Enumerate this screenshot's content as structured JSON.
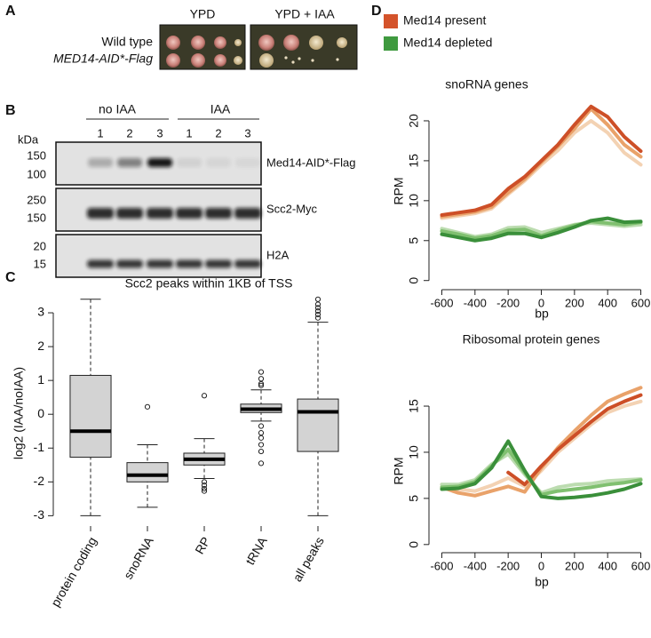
{
  "panel_a": {
    "letter": "A",
    "conditions": [
      "YPD",
      "YPD + IAA"
    ],
    "strains": [
      "Wild type",
      "MED14-AID*-Flag"
    ]
  },
  "panel_b": {
    "letter": "B",
    "groups": [
      "no IAA",
      "IAA"
    ],
    "lanes": [
      "1",
      "2",
      "3",
      "1",
      "2",
      "3"
    ],
    "unit": "kDa",
    "blots": [
      {
        "label": "Med14-AID*-Flag",
        "markers": [
          "150",
          "100"
        ]
      },
      {
        "label": "Scc2-Myc",
        "markers": [
          "250",
          "150"
        ]
      },
      {
        "label": "H2A",
        "markers": [
          "20",
          "15"
        ]
      }
    ]
  },
  "panel_c": {
    "letter": "C"
  },
  "panel_d": {
    "letter": "D",
    "legend": [
      {
        "name": "Med14 present",
        "color": "#d4532b"
      },
      {
        "name": "Med14 depleted",
        "color": "#3f9a3f"
      }
    ]
  },
  "chart_data": [
    {
      "type": "box",
      "title": "Scc2 peaks within 1KB of TSS",
      "ylabel": "log2 (IAA/noIAA)",
      "categories": [
        "protein coding",
        "snoRNA",
        "RP",
        "tRNA",
        "all peaks"
      ],
      "whisker_low": [
        -3,
        -2.75,
        -1.9,
        -0.2,
        -3
      ],
      "q1": [
        -1.27,
        -2.0,
        -1.5,
        0.05,
        -1.1
      ],
      "median": [
        -0.5,
        -1.8,
        -1.33,
        0.15,
        0.07
      ],
      "q3": [
        1.15,
        -1.43,
        -1.15,
        0.3,
        0.45
      ],
      "whisker_high": [
        3.4,
        -0.9,
        -0.72,
        0.72,
        2.72
      ],
      "outliers": [
        [],
        [
          0.22
        ],
        [
          0.55,
          -2.0,
          -2.1,
          -2.2,
          -2.27
        ],
        [
          1.25,
          1.05,
          0.9,
          0.85,
          -0.35,
          -0.55,
          -0.7,
          -0.9,
          -1.1,
          -1.45
        ],
        [
          2.85,
          2.95,
          3.05,
          3.15,
          3.25,
          3.4
        ]
      ],
      "color": "#d3d3d3",
      "ylim": [
        -3.2,
        3.5
      ],
      "yticks": [
        -3,
        -2,
        -1,
        0,
        1,
        2,
        3
      ]
    },
    {
      "type": "line",
      "title": "snoRNA genes",
      "xlabel": "bp",
      "ylabel": "RPM",
      "x": [
        -600,
        -500,
        -400,
        -300,
        -200,
        -100,
        0,
        100,
        200,
        300,
        400,
        500,
        600
      ],
      "series": [
        {
          "color": "#f3d2b3",
          "values": [
            7.8,
            8.1,
            8.4,
            9.0,
            10.8,
            12.5,
            14.5,
            16.3,
            18.5,
            20.0,
            18.5,
            16.0,
            14.5
          ]
        },
        {
          "color": "#e9a26a",
          "values": [
            8.0,
            8.3,
            8.6,
            9.2,
            11.0,
            12.7,
            14.8,
            16.8,
            19.0,
            21.5,
            19.5,
            17.0,
            15.5
          ]
        },
        {
          "color": "#cd4f27",
          "values": [
            8.2,
            8.5,
            8.8,
            9.5,
            11.5,
            13.0,
            15.0,
            17.0,
            19.5,
            21.8,
            20.5,
            18.0,
            16.2
          ]
        },
        {
          "color": "#bcdcb0",
          "values": [
            6.5,
            6.0,
            5.5,
            5.8,
            6.6,
            6.7,
            6.0,
            6.5,
            7.0,
            7.2,
            7.0,
            6.8,
            7.0
          ]
        },
        {
          "color": "#80c070",
          "values": [
            6.2,
            5.8,
            5.3,
            5.6,
            6.3,
            6.4,
            5.6,
            6.3,
            6.9,
            7.4,
            7.2,
            7.0,
            7.3
          ]
        },
        {
          "color": "#3a8f3a",
          "values": [
            5.8,
            5.4,
            5.0,
            5.3,
            5.9,
            5.9,
            5.4,
            6.0,
            6.7,
            7.5,
            7.8,
            7.3,
            7.4
          ]
        }
      ],
      "xlim": [
        -640,
        640
      ],
      "xticks": [
        -600,
        -400,
        -200,
        0,
        200,
        400,
        600
      ],
      "ylim": [
        -0.7,
        23
      ],
      "yticks": [
        0,
        5,
        10,
        15,
        20
      ]
    },
    {
      "type": "line",
      "title": "Ribosomal protein genes",
      "xlabel": "bp",
      "ylabel": "RPM",
      "x": [
        -600,
        -500,
        -400,
        -300,
        -200,
        -100,
        0,
        100,
        200,
        300,
        400,
        500,
        600
      ],
      "series": [
        {
          "color": "#f3d2b3",
          "values": [
            6.5,
            6.0,
            5.8,
            6.4,
            7.2,
            6.3,
            8.0,
            10.0,
            11.5,
            13.0,
            14.3,
            15.0,
            15.5
          ]
        },
        {
          "color": "#e9a26a",
          "values": [
            6.2,
            5.6,
            5.3,
            5.8,
            6.3,
            5.7,
            8.3,
            10.5,
            12.3,
            14.0,
            15.5,
            16.3,
            17.0
          ]
        },
        {
          "color": "#cd4f27",
          "values": [
            null,
            null,
            null,
            null,
            7.8,
            6.5,
            8.5,
            10.3,
            11.8,
            13.3,
            14.7,
            15.5,
            16.2
          ]
        },
        {
          "color": "#bcdcb0",
          "values": [
            6.5,
            6.5,
            7.0,
            8.7,
            9.8,
            7.6,
            5.6,
            6.2,
            6.5,
            6.6,
            6.9,
            7.0,
            7.1
          ]
        },
        {
          "color": "#80c070",
          "values": [
            6.2,
            6.3,
            6.8,
            8.5,
            10.3,
            7.8,
            5.4,
            5.8,
            6.0,
            6.2,
            6.5,
            6.7,
            7.0
          ]
        },
        {
          "color": "#3a8f3a",
          "values": [
            6.0,
            6.1,
            6.6,
            8.3,
            11.2,
            8.0,
            5.2,
            5.0,
            5.1,
            5.3,
            5.6,
            6.0,
            6.6
          ]
        }
      ],
      "xlim": [
        -640,
        640
      ],
      "xticks": [
        -600,
        -400,
        -200,
        0,
        200,
        400,
        600
      ],
      "ylim": [
        -0.5,
        17.7
      ],
      "yticks": [
        0,
        5,
        10,
        15
      ]
    }
  ]
}
